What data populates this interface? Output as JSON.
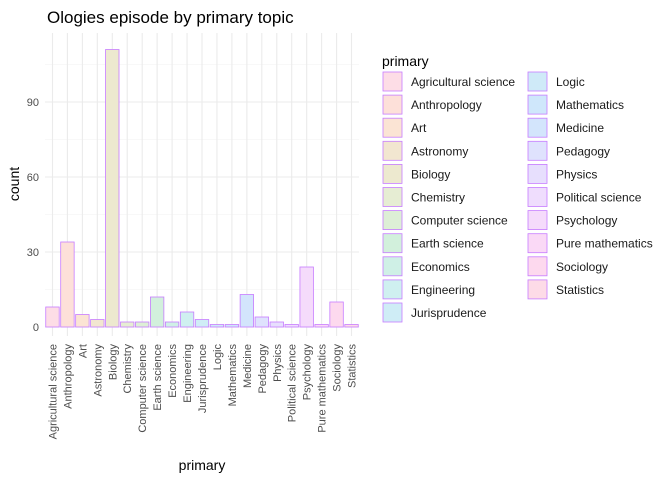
{
  "chart_data": {
    "type": "bar",
    "title": "Ologies episode by primary topic",
    "xlabel": "primary",
    "ylabel": "count",
    "ylim": [
      0,
      115
    ],
    "yticks": [
      0,
      30,
      60,
      90
    ],
    "grid": true,
    "legend_position": "right",
    "legend_title": "primary",
    "bar_outline_color": "#c77cff",
    "categories": [
      "Agricultural science",
      "Anthropology",
      "Art",
      "Astronomy",
      "Biology",
      "Chemistry",
      "Computer science",
      "Earth science",
      "Economics",
      "Engineering",
      "Jurisprudence",
      "Logic",
      "Mathematics",
      "Medicine",
      "Pedagogy",
      "Physics",
      "Political science",
      "Psychology",
      "Pure mathematics",
      "Sociology",
      "Statistics"
    ],
    "values": [
      8,
      34,
      5,
      3,
      111,
      2,
      2,
      12,
      2,
      6,
      3,
      1,
      1,
      13,
      4,
      2,
      1,
      24,
      1,
      10,
      1
    ],
    "colors": [
      "#fddde6",
      "#fde0d9",
      "#fbe4d4",
      "#f2e6d0",
      "#ede9cf",
      "#e6edd3",
      "#ddefd6",
      "#d2f0dc",
      "#cff0e6",
      "#cff0f0",
      "#cfedf6",
      "#cfeaf8",
      "#cfe7fb",
      "#d3e5fc",
      "#dfe2fd",
      "#e7dffd",
      "#efddfd",
      "#f5dbfb",
      "#fad9f6",
      "#fdd9ee",
      "#fddbe7"
    ]
  }
}
